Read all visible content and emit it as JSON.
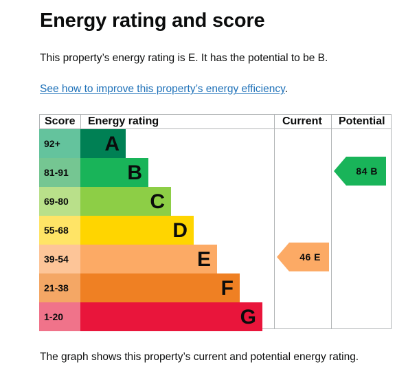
{
  "title": "Energy rating and score",
  "summary": "This property’s energy rating is E. It has the potential to be B.",
  "improve_link": "See how to improve this property’s energy efficiency",
  "improve_link_suffix": ".",
  "table_headers": {
    "score": "Score",
    "rating": "Energy rating",
    "current": "Current",
    "potential": "Potential"
  },
  "bands": [
    {
      "score": "92+",
      "letter": "A",
      "color": "#008054",
      "score_color": "#64c39d"
    },
    {
      "score": "81-91",
      "letter": "B",
      "color": "#19b459",
      "score_color": "#75c692"
    },
    {
      "score": "69-80",
      "letter": "C",
      "color": "#8dce46",
      "score_color": "#b9e08a"
    },
    {
      "score": "55-68",
      "letter": "D",
      "color": "#ffd500",
      "score_color": "#ffe466"
    },
    {
      "score": "39-54",
      "letter": "E",
      "color": "#fcaa65",
      "score_color": "#fdc598"
    },
    {
      "score": "21-38",
      "letter": "F",
      "color": "#ef8023",
      "score_color": "#f4a765"
    },
    {
      "score": "1-20",
      "letter": "G",
      "color": "#e9153b",
      "score_color": "#f0738a"
    }
  ],
  "current": {
    "value": "46",
    "letter": "E",
    "color": "#fcaa65"
  },
  "potential": {
    "value": "84",
    "letter": "B",
    "color": "#19b459"
  },
  "footer": "The graph shows this property’s current and potential energy rating."
}
